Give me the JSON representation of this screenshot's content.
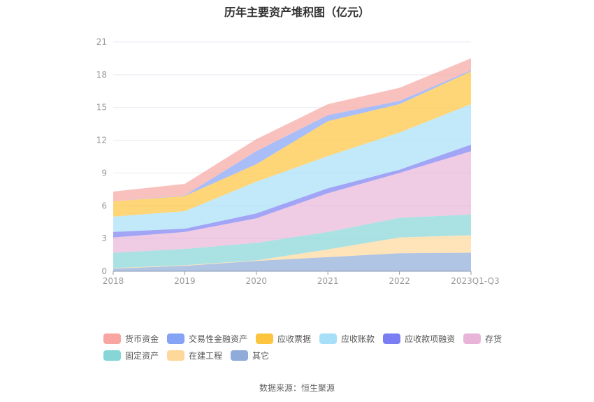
{
  "chart_data": {
    "type": "area",
    "stacked": true,
    "title": "历年主要资产堆积图（亿元）",
    "xlabel": "",
    "ylabel": "",
    "categories": [
      "2018",
      "2019",
      "2020",
      "2021",
      "2022",
      "2023Q1-Q3"
    ],
    "ylim": [
      0,
      21
    ],
    "yticks": [
      "0",
      "3",
      "6",
      "9",
      "12",
      "15",
      "18",
      "21"
    ],
    "grid": true,
    "legend_position": "bottom",
    "series": [
      {
        "name": "货币资金",
        "color": "#f7a6a1",
        "values": [
          0.9,
          1.05,
          1.1,
          1.0,
          1.2,
          1.1
        ]
      },
      {
        "name": "交易性金融资产",
        "color": "#84a3f5",
        "values": [
          0.0,
          0.05,
          1.2,
          0.55,
          0.3,
          0.1
        ]
      },
      {
        "name": "应收票据",
        "color": "#fdc53e",
        "values": [
          1.4,
          1.4,
          1.6,
          3.2,
          2.6,
          3.0
        ]
      },
      {
        "name": "应收账款",
        "color": "#a7dff8",
        "values": [
          1.4,
          1.6,
          2.9,
          2.95,
          3.4,
          3.7
        ]
      },
      {
        "name": "应收款项融资",
        "color": "#7a7ef2",
        "values": [
          0.5,
          0.3,
          0.45,
          0.45,
          0.3,
          0.6
        ]
      },
      {
        "name": "存货",
        "color": "#e8b5d8",
        "values": [
          1.4,
          1.55,
          2.25,
          3.55,
          4.1,
          5.8
        ]
      },
      {
        "name": "固定资产",
        "color": "#86d6d8",
        "values": [
          1.4,
          1.5,
          1.6,
          1.6,
          1.8,
          1.9
        ]
      },
      {
        "name": "在建工程",
        "color": "#fdd89a",
        "values": [
          0.05,
          0.05,
          0.05,
          0.7,
          1.45,
          1.6
        ]
      },
      {
        "name": "其它",
        "color": "#8eabd9",
        "values": [
          0.25,
          0.5,
          0.95,
          1.3,
          1.65,
          1.7
        ]
      }
    ]
  },
  "source": "数据来源：恒生聚源"
}
